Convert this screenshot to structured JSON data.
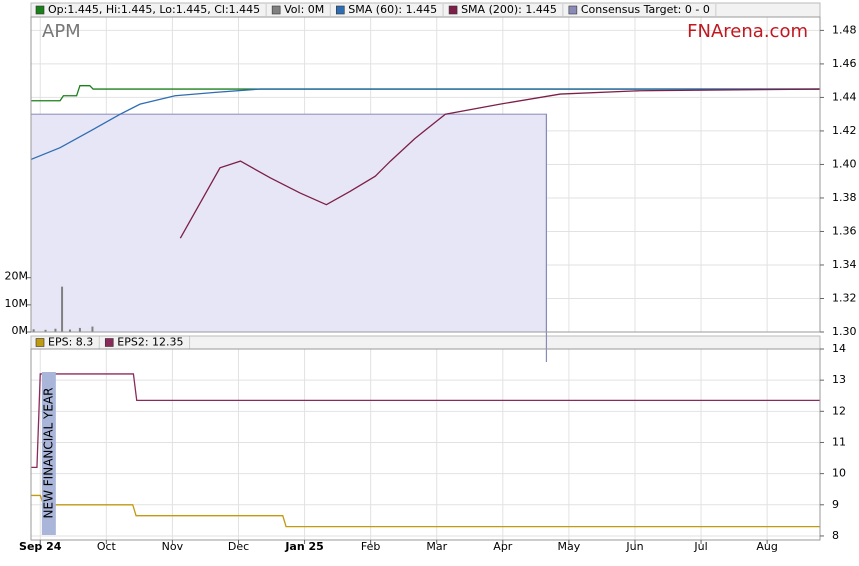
{
  "chart_data": [
    {
      "type": "line",
      "title": "APM",
      "source": "FNArena.com",
      "ylim": [
        1.3,
        1.488
      ],
      "yticks": [
        {
          "value": 1.3,
          "label": "1.30"
        },
        1.32,
        1.34,
        1.36,
        1.38,
        {
          "value": 1.4,
          "label": "1.40"
        },
        1.42,
        1.44,
        1.46,
        1.48
      ],
      "y2lim": [
        0,
        116000000
      ],
      "y2ticks": [
        {
          "value": 0,
          "label": "0M"
        },
        {
          "value": 10000000,
          "label": "10M"
        },
        {
          "value": 20000000,
          "label": "20M"
        }
      ],
      "grid": true,
      "series": [
        {
          "name": "Op:1.445, Hi:1.445, Lo:1.445, Cl:1.445",
          "color": "#1a801a",
          "x": [
            -0.14,
            0.3,
            0.35,
            0.55,
            0.6,
            0.75,
            0.8,
            11.8
          ],
          "values": [
            1.438,
            1.438,
            1.441,
            1.441,
            1.447,
            1.447,
            1.445,
            1.445
          ]
        },
        {
          "name": "Vol: 0M",
          "color": "#808080",
          "type": "bar",
          "axis": "y2",
          "x": [
            -0.1,
            0.08,
            0.23,
            0.33,
            0.45,
            0.6,
            0.79
          ],
          "values": [
            1000000,
            800000,
            1200000,
            16700000,
            900000,
            1500000,
            2000000
          ]
        },
        {
          "name": "SMA (60): 1.445",
          "color": "#2f6db3",
          "x": [
            -0.14,
            0.3,
            0.76,
            1.21,
            1.51,
            2.04,
            2.65,
            3.33,
            11.8
          ],
          "values": [
            1.403,
            1.41,
            1.42,
            1.43,
            1.436,
            1.441,
            1.443,
            1.445,
            1.445
          ]
        },
        {
          "name": "SMA (200): 1.445",
          "color": "#7d1f48",
          "x": [
            2.12,
            2.72,
            3.03,
            3.48,
            3.93,
            4.33,
            4.69,
            5.07,
            5.3,
            5.67,
            6.13,
            6.96,
            7.87,
            9.08,
            11.8
          ],
          "values": [
            1.356,
            1.398,
            1.402,
            1.392,
            1.383,
            1.376,
            1.384,
            1.393,
            1.402,
            1.4155,
            1.43,
            1.436,
            1.442,
            1.444,
            1.445
          ]
        },
        {
          "name": "Consensus Target: 0 - 0",
          "color": "#8a8ab8",
          "type": "band",
          "x": [
            -0.14,
            7.66
          ],
          "values": [
            1.43,
            1.43
          ]
        }
      ]
    },
    {
      "type": "line",
      "xlim": [
        -0.14,
        11.8
      ],
      "xticks": [
        {
          "value": 0,
          "label": "Sep 24"
        },
        {
          "value": 1,
          "label": "Oct"
        },
        {
          "value": 2,
          "label": "Nov"
        },
        {
          "value": 3,
          "label": "Dec"
        },
        {
          "value": 4,
          "label": "Jan 25"
        },
        {
          "value": 5,
          "label": "Feb"
        },
        {
          "value": 6,
          "label": "Mar"
        },
        {
          "value": 7,
          "label": "Apr"
        },
        {
          "value": 8,
          "label": "May"
        },
        {
          "value": 9,
          "label": "Jun"
        },
        {
          "value": 10,
          "label": "Jul"
        },
        {
          "value": 11,
          "label": "Aug"
        }
      ],
      "ylim": [
        7.87,
        14
      ],
      "yticks": [
        8,
        9,
        10,
        11,
        12,
        13,
        14
      ],
      "grid": true,
      "annotations": [
        {
          "text": "NEW FINANCIAL YEAR",
          "x": 0.13
        }
      ],
      "series": [
        {
          "name": "EPS: 8.3",
          "color": "#c09a10",
          "x": [
            -0.14,
            0.0,
            0.05,
            1.4,
            1.45,
            3.67,
            3.72,
            11.8
          ],
          "values": [
            9.3,
            9.3,
            9.0,
            9.0,
            8.65,
            8.65,
            8.3,
            8.3
          ]
        },
        {
          "name": "EPS2: 12.35",
          "color": "#8b2a5a",
          "x": [
            -0.14,
            -0.05,
            0.0,
            1.41,
            1.46,
            11.8
          ],
          "values": [
            10.2,
            10.2,
            13.2,
            13.2,
            12.35,
            12.35
          ]
        }
      ]
    }
  ]
}
